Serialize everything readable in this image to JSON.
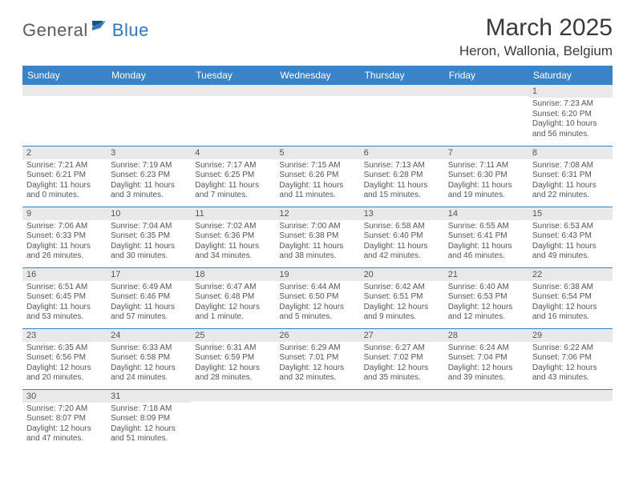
{
  "logo": {
    "part1": "General",
    "part2": "Blue"
  },
  "title": "March 2025",
  "location": "Heron, Wallonia, Belgium",
  "colors": {
    "header_bg": "#3983c6",
    "header_text": "#ffffff",
    "daybar_bg": "#e9e9e9",
    "cell_border": "#3983c6",
    "logo_blue": "#2e78bd",
    "logo_gray": "#5b5b5b"
  },
  "weekdays": [
    "Sunday",
    "Monday",
    "Tuesday",
    "Wednesday",
    "Thursday",
    "Friday",
    "Saturday"
  ],
  "days": {
    "1": {
      "sunrise": "7:23 AM",
      "sunset": "6:20 PM",
      "daylight": "10 hours and 56 minutes."
    },
    "2": {
      "sunrise": "7:21 AM",
      "sunset": "6:21 PM",
      "daylight": "11 hours and 0 minutes."
    },
    "3": {
      "sunrise": "7:19 AM",
      "sunset": "6:23 PM",
      "daylight": "11 hours and 3 minutes."
    },
    "4": {
      "sunrise": "7:17 AM",
      "sunset": "6:25 PM",
      "daylight": "11 hours and 7 minutes."
    },
    "5": {
      "sunrise": "7:15 AM",
      "sunset": "6:26 PM",
      "daylight": "11 hours and 11 minutes."
    },
    "6": {
      "sunrise": "7:13 AM",
      "sunset": "6:28 PM",
      "daylight": "11 hours and 15 minutes."
    },
    "7": {
      "sunrise": "7:11 AM",
      "sunset": "6:30 PM",
      "daylight": "11 hours and 19 minutes."
    },
    "8": {
      "sunrise": "7:08 AM",
      "sunset": "6:31 PM",
      "daylight": "11 hours and 22 minutes."
    },
    "9": {
      "sunrise": "7:06 AM",
      "sunset": "6:33 PM",
      "daylight": "11 hours and 26 minutes."
    },
    "10": {
      "sunrise": "7:04 AM",
      "sunset": "6:35 PM",
      "daylight": "11 hours and 30 minutes."
    },
    "11": {
      "sunrise": "7:02 AM",
      "sunset": "6:36 PM",
      "daylight": "11 hours and 34 minutes."
    },
    "12": {
      "sunrise": "7:00 AM",
      "sunset": "6:38 PM",
      "daylight": "11 hours and 38 minutes."
    },
    "13": {
      "sunrise": "6:58 AM",
      "sunset": "6:40 PM",
      "daylight": "11 hours and 42 minutes."
    },
    "14": {
      "sunrise": "6:55 AM",
      "sunset": "6:41 PM",
      "daylight": "11 hours and 46 minutes."
    },
    "15": {
      "sunrise": "6:53 AM",
      "sunset": "6:43 PM",
      "daylight": "11 hours and 49 minutes."
    },
    "16": {
      "sunrise": "6:51 AM",
      "sunset": "6:45 PM",
      "daylight": "11 hours and 53 minutes."
    },
    "17": {
      "sunrise": "6:49 AM",
      "sunset": "6:46 PM",
      "daylight": "11 hours and 57 minutes."
    },
    "18": {
      "sunrise": "6:47 AM",
      "sunset": "6:48 PM",
      "daylight": "12 hours and 1 minute."
    },
    "19": {
      "sunrise": "6:44 AM",
      "sunset": "6:50 PM",
      "daylight": "12 hours and 5 minutes."
    },
    "20": {
      "sunrise": "6:42 AM",
      "sunset": "6:51 PM",
      "daylight": "12 hours and 9 minutes."
    },
    "21": {
      "sunrise": "6:40 AM",
      "sunset": "6:53 PM",
      "daylight": "12 hours and 12 minutes."
    },
    "22": {
      "sunrise": "6:38 AM",
      "sunset": "6:54 PM",
      "daylight": "12 hours and 16 minutes."
    },
    "23": {
      "sunrise": "6:35 AM",
      "sunset": "6:56 PM",
      "daylight": "12 hours and 20 minutes."
    },
    "24": {
      "sunrise": "6:33 AM",
      "sunset": "6:58 PM",
      "daylight": "12 hours and 24 minutes."
    },
    "25": {
      "sunrise": "6:31 AM",
      "sunset": "6:59 PM",
      "daylight": "12 hours and 28 minutes."
    },
    "26": {
      "sunrise": "6:29 AM",
      "sunset": "7:01 PM",
      "daylight": "12 hours and 32 minutes."
    },
    "27": {
      "sunrise": "6:27 AM",
      "sunset": "7:02 PM",
      "daylight": "12 hours and 35 minutes."
    },
    "28": {
      "sunrise": "6:24 AM",
      "sunset": "7:04 PM",
      "daylight": "12 hours and 39 minutes."
    },
    "29": {
      "sunrise": "6:22 AM",
      "sunset": "7:06 PM",
      "daylight": "12 hours and 43 minutes."
    },
    "30": {
      "sunrise": "7:20 AM",
      "sunset": "8:07 PM",
      "daylight": "12 hours and 47 minutes."
    },
    "31": {
      "sunrise": "7:18 AM",
      "sunset": "8:09 PM",
      "daylight": "12 hours and 51 minutes."
    }
  },
  "grid": [
    [
      null,
      null,
      null,
      null,
      null,
      null,
      "1"
    ],
    [
      "2",
      "3",
      "4",
      "5",
      "6",
      "7",
      "8"
    ],
    [
      "9",
      "10",
      "11",
      "12",
      "13",
      "14",
      "15"
    ],
    [
      "16",
      "17",
      "18",
      "19",
      "20",
      "21",
      "22"
    ],
    [
      "23",
      "24",
      "25",
      "26",
      "27",
      "28",
      "29"
    ],
    [
      "30",
      "31",
      null,
      null,
      null,
      null,
      null
    ]
  ],
  "labels": {
    "sunrise": "Sunrise: ",
    "sunset": "Sunset: ",
    "daylight": "Daylight: "
  }
}
